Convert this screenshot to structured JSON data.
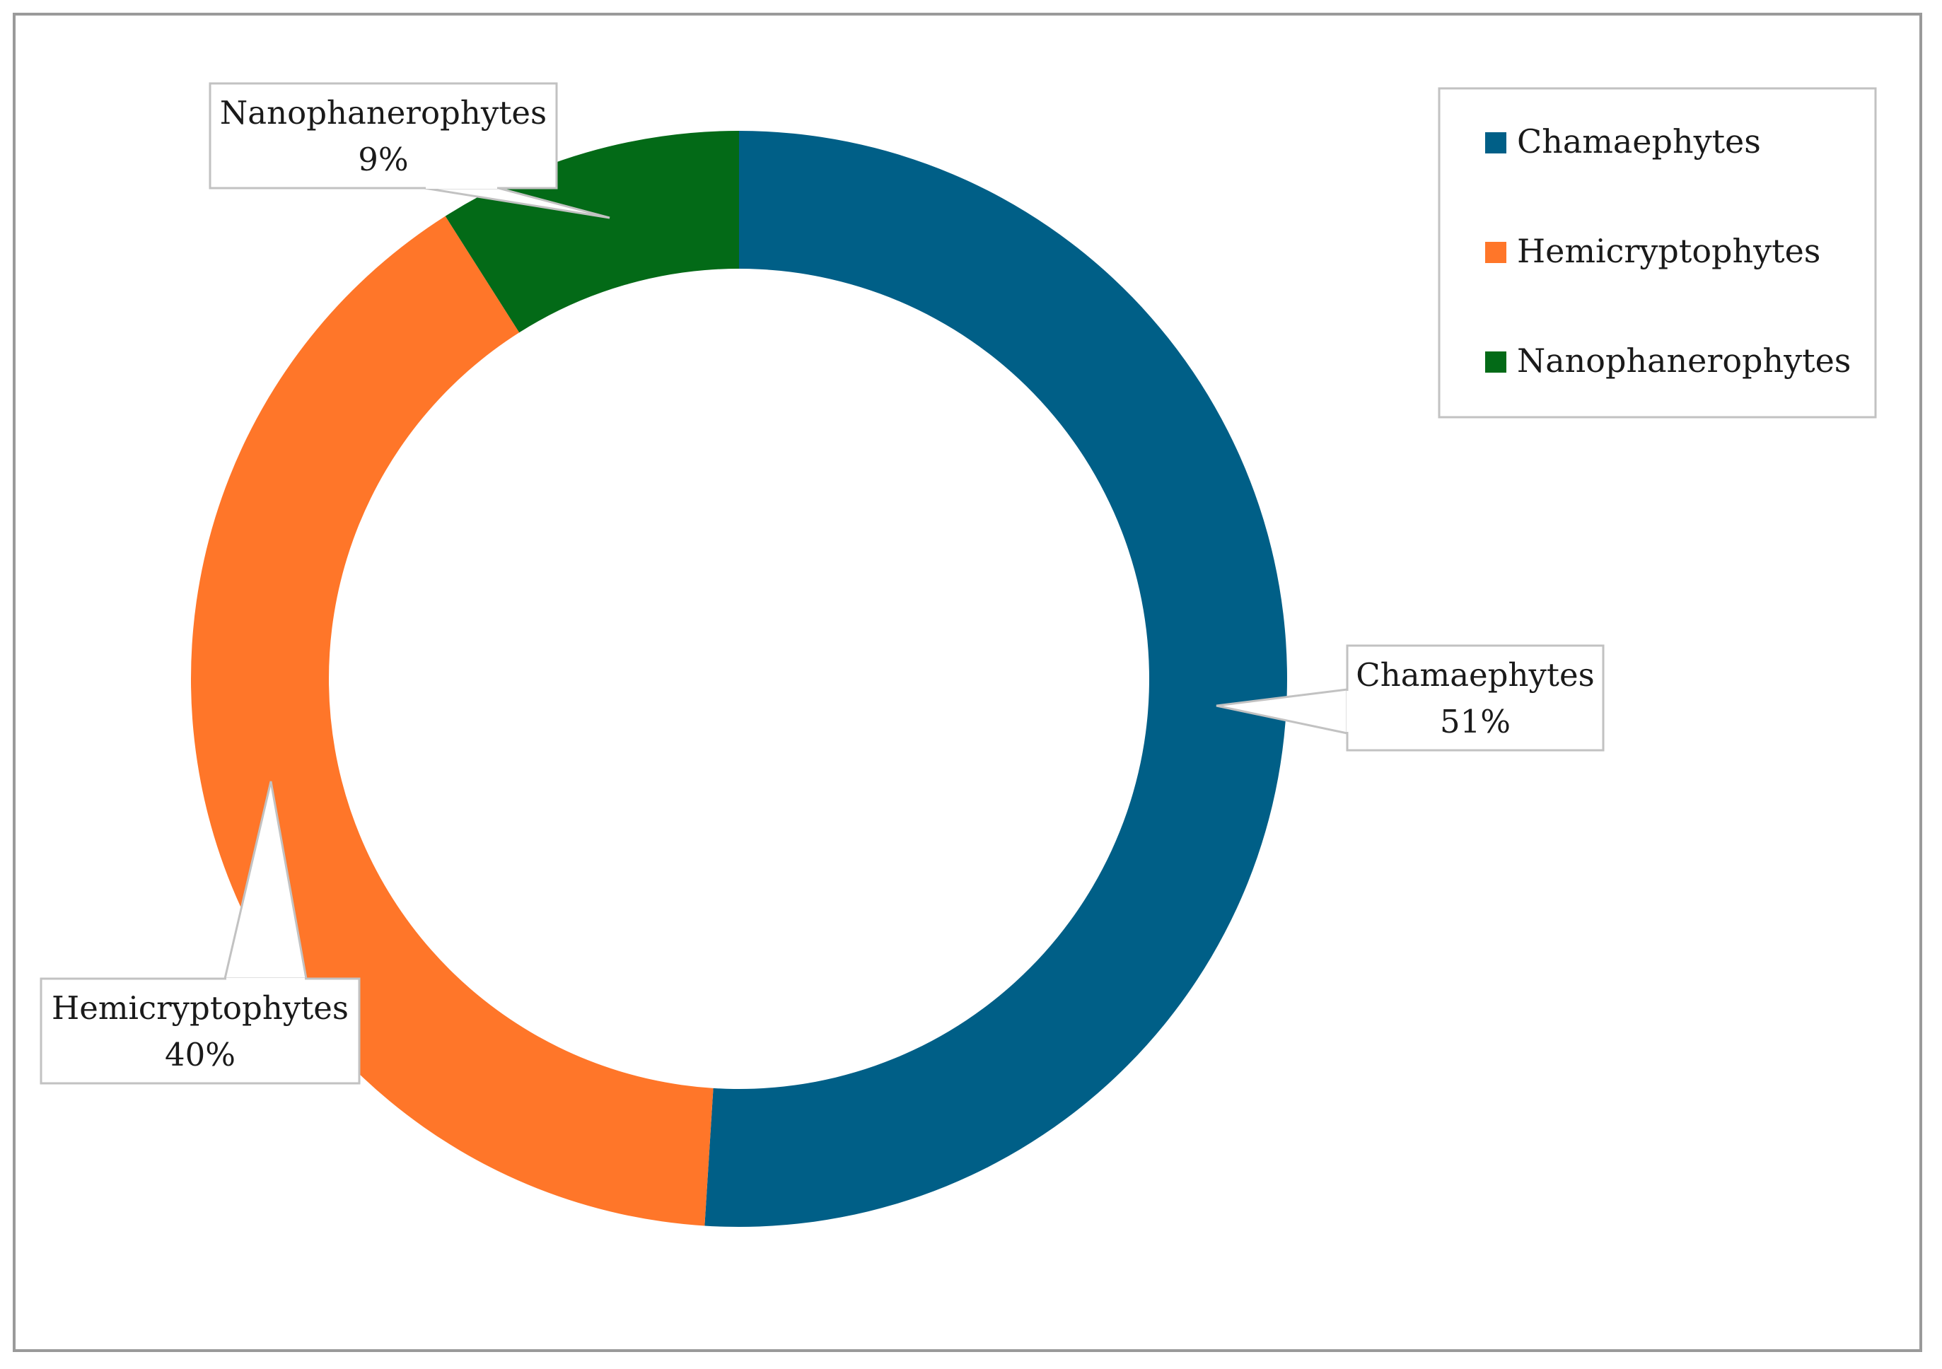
{
  "chart_data": {
    "type": "pie",
    "donut": true,
    "title": "",
    "categories": [
      "Chamaephytes",
      "Hemicryptophytes",
      "Nanophanerophytes"
    ],
    "values": [
      51,
      40,
      9
    ],
    "colors": [
      "#005f87",
      "#ff7629",
      "#036a17"
    ],
    "data_labels": [
      {
        "name": "Chamaephytes",
        "value": "51%"
      },
      {
        "name": "Hemicryptophytes",
        "value": "40%"
      },
      {
        "name": "Nanophanerophytes",
        "value": "9%"
      }
    ],
    "legend": {
      "position": "top-right",
      "entries": [
        "Chamaephytes",
        "Hemicryptophytes",
        "Nanophanerophytes"
      ]
    }
  }
}
